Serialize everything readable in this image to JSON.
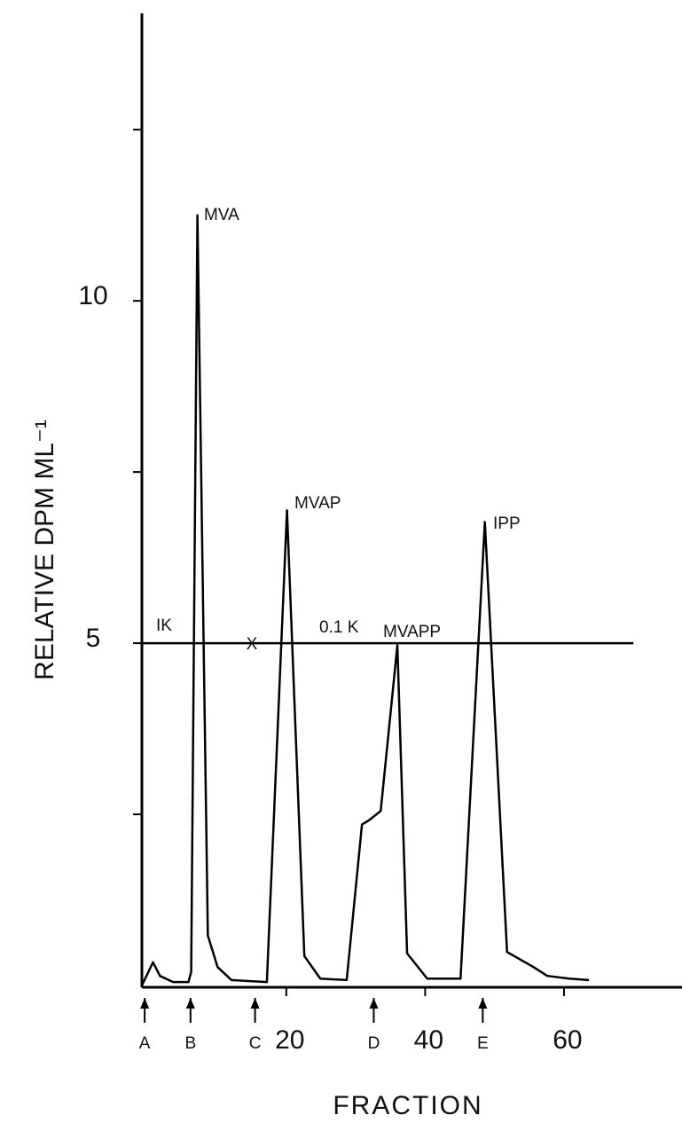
{
  "chart_data": {
    "type": "line",
    "y_label": "RELATIVE    DPM    ML⁻¹",
    "x_label": "FRACTION",
    "x": [
      -0.8,
      0.8,
      1.8,
      3.7,
      5.9,
      6.3,
      7.2,
      8.7,
      10.1,
      12.1,
      17.2,
      20.1,
      22.6,
      24.9,
      28.7,
      30.9,
      32.0,
      33.6,
      36.0,
      37.4,
      40.3,
      45.1,
      48.6,
      51.8,
      55.6,
      57.6,
      60.8,
      63.6
    ],
    "series": [
      {
        "color": "#000000",
        "values": [
          0,
          0.34,
          0.14,
          0.05,
          0.05,
          0.2,
          11.25,
          0.73,
          0.27,
          0.08,
          0.05,
          6.94,
          0.43,
          0.1,
          0.08,
          2.35,
          2.42,
          2.55,
          4.97,
          0.47,
          0.1,
          0.1,
          6.77,
          0.49,
          0.27,
          0.14,
          0.1,
          0.08
        ]
      }
    ],
    "xlim": [
      -0.8,
      77
    ],
    "ylim": [
      0,
      14.2
    ],
    "xticks": [
      20,
      40,
      60
    ],
    "yticks": [
      5,
      10
    ],
    "minor_yticks": [
      2.5,
      7.5,
      12.5
    ],
    "reference_line": {
      "y": 5,
      "x_end": 70
    },
    "markers": [
      {
        "label": "A",
        "x": -0.4
      },
      {
        "label": "B",
        "x": 6.2
      },
      {
        "label": "C",
        "x": 15.5
      },
      {
        "label": "D",
        "x": 32.6
      },
      {
        "label": "E",
        "x": 48.3
      }
    ],
    "annotations": [
      "MVA",
      "MVAP",
      "MVAPP",
      "IPP",
      "IK",
      "X",
      "0.1 K"
    ]
  }
}
